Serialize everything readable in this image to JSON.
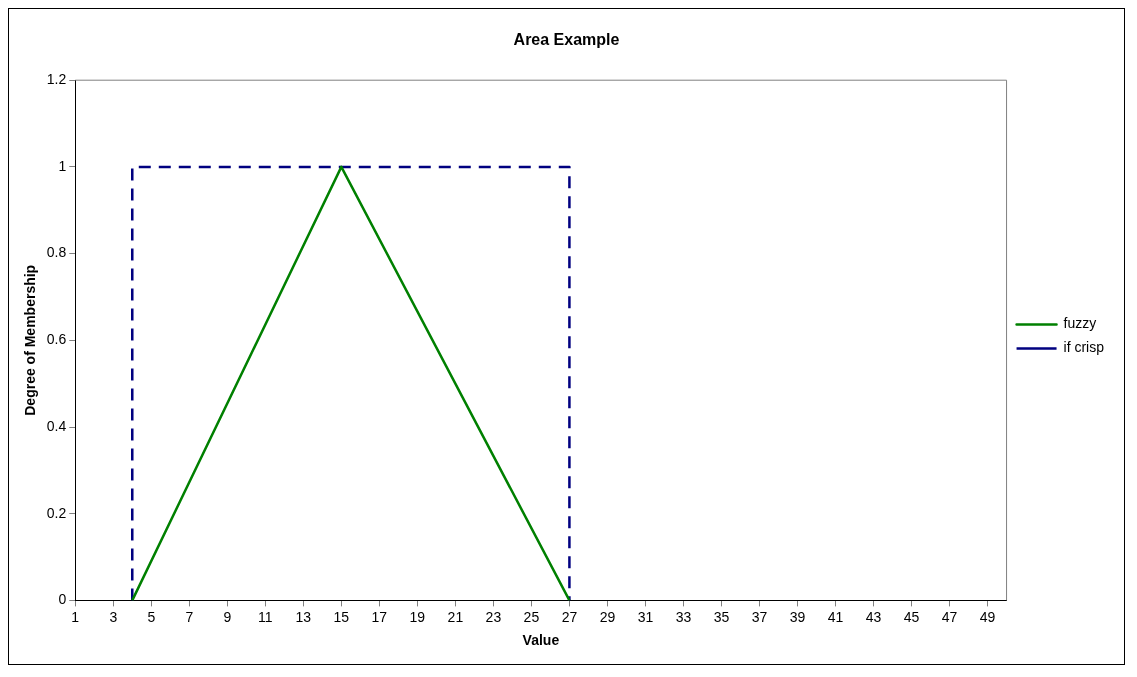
{
  "chart_data": {
    "type": "line",
    "title": "Area Example",
    "xlabel": "Value",
    "ylabel": "Degree of Membership",
    "xlim": [
      1,
      50
    ],
    "xticks": [
      1,
      3,
      5,
      7,
      9,
      11,
      13,
      15,
      17,
      19,
      21,
      23,
      25,
      27,
      29,
      31,
      33,
      35,
      37,
      39,
      41,
      43,
      45,
      47,
      49
    ],
    "ylim": [
      0,
      1.2
    ],
    "yticks": [
      0,
      0.2,
      0.4,
      0.6,
      0.8,
      1,
      1.2
    ],
    "series": [
      {
        "name": "fuzzy",
        "color": "#008000",
        "line_style": "solid",
        "x": [
          4,
          15,
          27
        ],
        "values": [
          0,
          1,
          0
        ]
      },
      {
        "name": "if crisp",
        "color": "#000080",
        "line_style": "dashed",
        "x": [
          4,
          4,
          27,
          27
        ],
        "values": [
          0,
          1,
          1,
          0
        ]
      }
    ],
    "grid": false,
    "legend": "right",
    "marker": "none"
  }
}
